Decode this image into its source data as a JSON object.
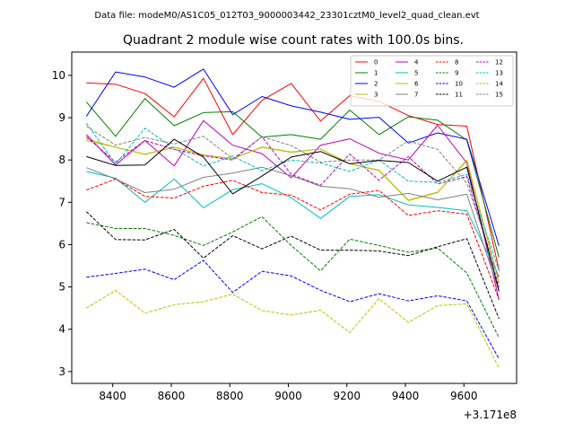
{
  "suptitle": "Data file: modeM0/AS1C05_012T03_9000003442_23301cztM0_level2_quad_clean.evt",
  "chart_data": {
    "type": "line",
    "title": "Quadrant 2 module wise count rates with 100.0s bins.",
    "xlabel": "",
    "ylabel": "",
    "x_offset_label": "+3.171e8",
    "x_offset": 317100000,
    "xlim": [
      317108260,
      317109780
    ],
    "ylim": [
      2.72,
      10.55
    ],
    "xticks": [
      317108400,
      317108600,
      317108800,
      317109000,
      317109200,
      317109400,
      317109600
    ],
    "xtick_labels": [
      "8400",
      "8600",
      "8800",
      "9000",
      "9200",
      "9400",
      "9600"
    ],
    "yticks": [
      3,
      4,
      5,
      6,
      7,
      8,
      9,
      10
    ],
    "ytick_labels": [
      "3",
      "4",
      "5",
      "6",
      "7",
      "8",
      "9",
      "10"
    ],
    "grid": false,
    "legend_position": "top-right",
    "x": [
      317108310,
      317108410,
      317108510,
      317108610,
      317108710,
      317108810,
      317108910,
      317109010,
      317109110,
      317109210,
      317109310,
      317109410,
      317109510,
      317109610,
      317109720
    ],
    "series": [
      {
        "name": "0",
        "color": "#ff0000",
        "dash": "solid",
        "values": [
          9.82,
          9.79,
          9.57,
          9.02,
          9.93,
          8.6,
          9.41,
          9.81,
          8.92,
          9.52,
          9.38,
          9.05,
          8.84,
          8.8,
          5.4
        ]
      },
      {
        "name": "1",
        "color": "#008000",
        "dash": "solid",
        "values": [
          9.37,
          8.56,
          9.45,
          8.81,
          9.12,
          9.14,
          8.54,
          8.6,
          8.49,
          9.18,
          8.6,
          9.02,
          8.94,
          8.47,
          5.7
        ]
      },
      {
        "name": "2",
        "color": "#0000ff",
        "dash": "solid",
        "values": [
          9.03,
          10.08,
          9.96,
          9.72,
          10.15,
          9.07,
          9.5,
          9.28,
          9.13,
          8.96,
          9.01,
          8.4,
          8.64,
          8.49,
          5.97
        ]
      },
      {
        "name": "3",
        "color": "#bfbf00",
        "dash": "solid",
        "values": [
          8.5,
          8.3,
          8.13,
          8.3,
          8.12,
          8.03,
          8.31,
          8.19,
          8.26,
          7.91,
          7.75,
          7.04,
          7.23,
          8.0,
          5.1
        ]
      },
      {
        "name": "4",
        "color": "#bf00bf",
        "dash": "solid",
        "values": [
          8.6,
          7.88,
          8.46,
          7.86,
          8.93,
          8.35,
          8.15,
          7.58,
          8.35,
          8.5,
          8.16,
          8.0,
          8.82,
          7.93,
          4.7
        ]
      },
      {
        "name": "5",
        "color": "#00bfbf",
        "dash": "solid",
        "values": [
          7.73,
          7.57,
          7.0,
          7.55,
          6.87,
          7.3,
          7.44,
          7.11,
          6.62,
          7.14,
          7.18,
          6.94,
          6.88,
          6.8,
          5.25
        ]
      },
      {
        "name": "6",
        "color": "#bfbf00",
        "dash": "solid",
        "values": [
          8.46,
          8.3,
          8.14,
          8.3,
          8.12,
          8.03,
          8.3,
          8.18,
          8.26,
          7.91,
          7.76,
          7.05,
          7.24,
          7.98,
          5.1
        ]
      },
      {
        "name": "7",
        "color": "#808080",
        "dash": "solid",
        "values": [
          7.82,
          7.55,
          7.23,
          7.31,
          7.59,
          7.69,
          7.83,
          7.63,
          7.38,
          7.32,
          7.12,
          7.21,
          7.06,
          7.19,
          4.9
        ]
      },
      {
        "name": "8",
        "color": "#ff0000",
        "dash": "dashed",
        "values": [
          7.29,
          7.55,
          7.14,
          7.1,
          7.38,
          7.52,
          7.23,
          7.17,
          6.82,
          7.19,
          7.28,
          6.69,
          6.8,
          6.72,
          4.7
        ]
      },
      {
        "name": "9",
        "color": "#008000",
        "dash": "dashed",
        "values": [
          6.52,
          6.38,
          6.38,
          6.22,
          5.98,
          6.3,
          6.66,
          5.98,
          5.38,
          6.13,
          5.98,
          5.82,
          5.92,
          5.33,
          3.8
        ]
      },
      {
        "name": "10",
        "color": "#0000ff",
        "dash": "dashed",
        "values": [
          5.23,
          5.32,
          5.42,
          5.17,
          5.63,
          4.87,
          5.37,
          5.26,
          4.92,
          4.65,
          4.84,
          4.67,
          4.79,
          4.67,
          3.3
        ]
      },
      {
        "name": "11",
        "color": "#000000",
        "dash": "dashed",
        "values": [
          6.78,
          6.12,
          6.11,
          6.36,
          5.68,
          6.21,
          5.9,
          6.2,
          5.87,
          5.87,
          5.85,
          5.74,
          5.95,
          6.14,
          4.25
        ]
      },
      {
        "name": "12",
        "color": "#bf00bf",
        "dash": "dashed",
        "values": [
          8.55,
          7.95,
          8.46,
          8.25,
          8.1,
          8.0,
          8.55,
          7.66,
          7.4,
          8.14,
          7.52,
          8.08,
          7.43,
          7.61,
          5.0
        ]
      },
      {
        "name": "13",
        "color": "#00bfbf",
        "dash": "dashed",
        "values": [
          8.87,
          7.9,
          8.75,
          8.27,
          7.86,
          8.09,
          7.75,
          8.0,
          7.93,
          7.73,
          8.0,
          7.5,
          7.47,
          7.66,
          5.38
        ]
      },
      {
        "name": "14",
        "color": "#bfbf00",
        "dash": "dashed",
        "values": [
          4.5,
          4.92,
          4.38,
          4.58,
          4.65,
          4.83,
          4.44,
          4.34,
          4.45,
          3.92,
          4.72,
          4.16,
          4.56,
          4.6,
          3.08
        ]
      },
      {
        "name": "15",
        "color": "#808080",
        "dash": "dashed",
        "values": [
          8.8,
          8.35,
          8.53,
          8.38,
          8.56,
          8.03,
          8.55,
          8.34,
          7.95,
          8.0,
          8.0,
          8.45,
          8.25,
          7.45,
          5.2
        ]
      }
    ],
    "solid_black_line": {
      "color": "#000000",
      "values": [
        8.08,
        7.87,
        7.88,
        8.49,
        8.07,
        7.2,
        7.62,
        8.07,
        8.2,
        7.91,
        7.99,
        7.94,
        7.5,
        7.83,
        4.9
      ]
    }
  }
}
